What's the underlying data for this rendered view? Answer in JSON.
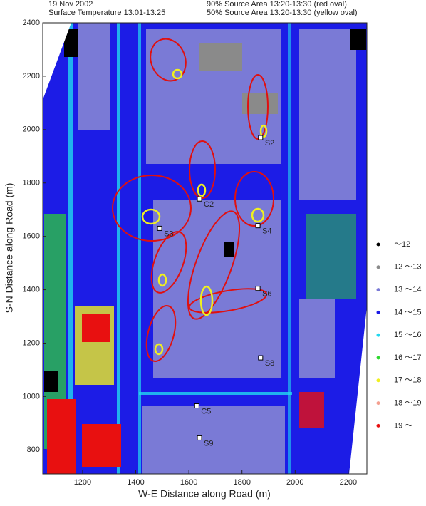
{
  "header": {
    "date": "19 Nov 2002",
    "surface": "Surface Temperature 13:01-13:25",
    "red": "90% Source Area 13:20-13:30 (red oval)",
    "yellow": "50% Source Area 13:20-13:30 (yellow oval)"
  },
  "axes": {
    "x_label": "W-E Distance along Road (m)",
    "y_label": "S-N Distance along Road (m)",
    "xlim": [
      1050,
      2270
    ],
    "ylim": [
      710,
      2400
    ],
    "xticks": [
      1200,
      1400,
      1600,
      1800,
      2000,
      2200
    ],
    "yticks": [
      800,
      1000,
      1200,
      1400,
      1600,
      1800,
      2000,
      2200,
      2400
    ]
  },
  "stations": [
    {
      "label": "S2",
      "x": 1870,
      "y": 1970
    },
    {
      "label": "C2",
      "x": 1640,
      "y": 1740
    },
    {
      "label": "S3",
      "x": 1490,
      "y": 1630
    },
    {
      "label": "S4",
      "x": 1860,
      "y": 1640
    },
    {
      "label": "S6",
      "x": 1860,
      "y": 1405
    },
    {
      "label": "S8",
      "x": 1870,
      "y": 1145
    },
    {
      "label": "C5",
      "x": 1630,
      "y": 965
    },
    {
      "label": "S9",
      "x": 1640,
      "y": 845
    }
  ],
  "legend": [
    {
      "label": "～12",
      "color": "#000000"
    },
    {
      "label": "12 ～13",
      "color": "#8a8a8a"
    },
    {
      "label": "13 ～14",
      "color": "#7a7ad6"
    },
    {
      "label": "14 ～15",
      "color": "#1c1ce6"
    },
    {
      "label": "15 ～16",
      "color": "#22d8f0"
    },
    {
      "label": "16 ～17",
      "color": "#2ed82e"
    },
    {
      "label": "17 ～18",
      "color": "#f0f020"
    },
    {
      "label": "18 ～19",
      "color": "#f4a090"
    },
    {
      "label": "19 ～",
      "color": "#e81010"
    }
  ]
}
